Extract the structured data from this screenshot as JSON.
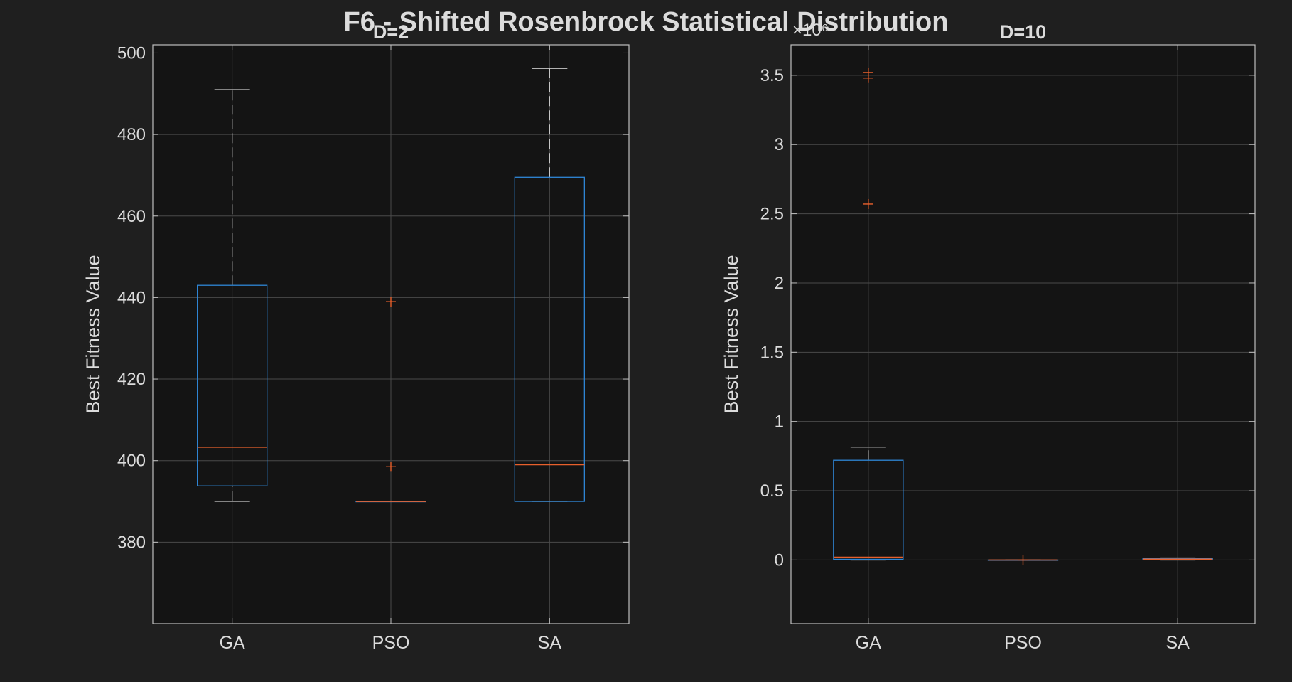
{
  "figure": {
    "title": "F6 - Shifted Rosenbrock Statistical Distribution"
  },
  "colors": {
    "background": "#1f1f1f",
    "axes_bg": "#141414",
    "grid": "#4a4a4a",
    "axis": "#bfbfbf",
    "text": "#dcdcdc",
    "box": "#2f86d6",
    "median": "#e8602c",
    "outlier": "#e8602c",
    "whisker": "#c8c8c8"
  },
  "chart_data": [
    {
      "type": "box",
      "title": "D=2",
      "xlabel": "",
      "ylabel": "Best Fitness Value",
      "categories": [
        "GA",
        "PSO",
        "SA"
      ],
      "ylim": [
        360,
        502
      ],
      "yticks": [
        380,
        400,
        420,
        440,
        460,
        480,
        500
      ],
      "ytick_labels": [
        "380",
        "400",
        "420",
        "440",
        "460",
        "480",
        "500"
      ],
      "grid": true,
      "exponent_label": "",
      "boxes": [
        {
          "category": "GA",
          "whisker_low": 390,
          "q1": 393.8,
          "median": 403.3,
          "q3": 443,
          "whisker_high": 491,
          "outliers": []
        },
        {
          "category": "PSO",
          "whisker_low": 390,
          "q1": 390,
          "median": 390,
          "q3": 390,
          "whisker_high": 390,
          "outliers": [
            398.5,
            439
          ]
        },
        {
          "category": "SA",
          "whisker_low": 390,
          "q1": 390,
          "median": 399,
          "q3": 469.5,
          "whisker_high": 496.2,
          "outliers": []
        }
      ]
    },
    {
      "type": "box",
      "title": "D=10",
      "xlabel": "",
      "ylabel": "Best Fitness Value",
      "categories": [
        "GA",
        "PSO",
        "SA"
      ],
      "ylim": [
        -0.46,
        3.72
      ],
      "yticks": [
        0,
        0.5,
        1,
        1.5,
        2,
        2.5,
        3,
        3.5
      ],
      "ytick_labels": [
        "0",
        "0.5",
        "1",
        "1.5",
        "2",
        "2.5",
        "3",
        "3.5"
      ],
      "grid": true,
      "exponent_label": "×10⁶",
      "boxes": [
        {
          "category": "GA",
          "whisker_low": 0.0,
          "q1": 0.005,
          "median": 0.02,
          "q3": 0.72,
          "whisker_high": 0.815,
          "outliers": [
            2.57,
            3.48,
            3.52
          ]
        },
        {
          "category": "PSO",
          "whisker_low": 0.0,
          "q1": 0.0,
          "median": 0.0,
          "q3": 0.0,
          "whisker_high": 0.0,
          "outliers": [
            0.0
          ]
        },
        {
          "category": "SA",
          "whisker_low": 0.0,
          "q1": 0.003,
          "median": 0.006,
          "q3": 0.012,
          "whisker_high": 0.015,
          "outliers": []
        }
      ]
    }
  ]
}
